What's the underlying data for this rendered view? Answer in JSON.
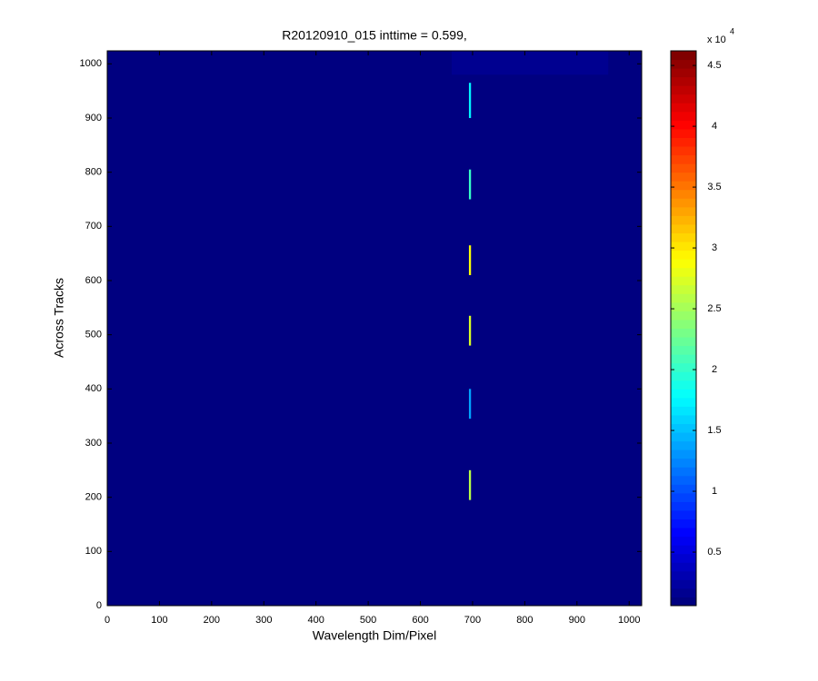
{
  "chart_data": {
    "type": "heatmap",
    "title": "R20120910_015 inttime = 0.599,",
    "x_label": "Wavelength Dim/Pixel",
    "y_label": "Across Tracks",
    "xlim": [
      0,
      1024
    ],
    "ylim": [
      0,
      1024
    ],
    "xticks": [
      0,
      100,
      200,
      300,
      400,
      500,
      600,
      700,
      800,
      900,
      1000
    ],
    "yticks": [
      0,
      100,
      200,
      300,
      400,
      500,
      600,
      700,
      800,
      900,
      1000
    ],
    "colormap": "jet",
    "background": 600,
    "segments": [
      {
        "x": [
          660,
          960
        ],
        "y": [
          980,
          1024
        ],
        "value": 1500
      },
      {
        "x": [
          693,
          697
        ],
        "y": [
          900,
          965
        ],
        "value": 17000
      },
      {
        "x": [
          693,
          697
        ],
        "y": [
          750,
          805
        ],
        "value": 20000
      },
      {
        "x": [
          693,
          697
        ],
        "y": [
          610,
          665
        ],
        "value": 29000
      },
      {
        "x": [
          693,
          697
        ],
        "y": [
          480,
          535
        ],
        "value": 27000
      },
      {
        "x": [
          693,
          697
        ],
        "y": [
          345,
          400
        ],
        "value": 14000
      },
      {
        "x": [
          693,
          697
        ],
        "y": [
          195,
          250
        ],
        "value": 26000
      }
    ],
    "clim": [
      600,
      46200
    ],
    "cticks": [
      {
        "value": 5000,
        "label": "0.5"
      },
      {
        "value": 10000,
        "label": "1"
      },
      {
        "value": 15000,
        "label": "1.5"
      },
      {
        "value": 20000,
        "label": "2"
      },
      {
        "value": 25000,
        "label": "2.5"
      },
      {
        "value": 30000,
        "label": "3"
      },
      {
        "value": 35000,
        "label": "3.5"
      },
      {
        "value": 40000,
        "label": "4"
      },
      {
        "value": 45000,
        "label": "4.5"
      }
    ],
    "colorbar_multiplier": "x 10",
    "colorbar_exponent": "4"
  }
}
